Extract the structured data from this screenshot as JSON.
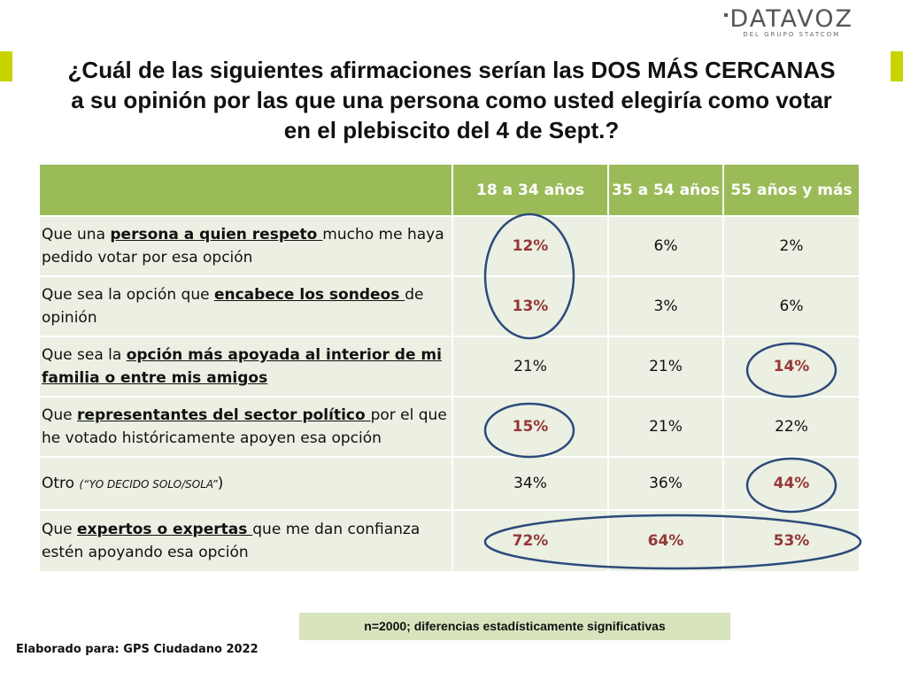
{
  "brand": {
    "logo_name": "DATAVOZ",
    "logo_subtitle": "DEL GRUPO STATCOM",
    "accent_color": "#c8d400",
    "header_green": "#9bbb59",
    "cell_green": "#ebf0e3",
    "highlight_red": "#953735",
    "circle_blue": "#2e4a7a"
  },
  "title": {
    "line1": "¿Cuál de las siguientes afirmaciones serían las DOS MÁS CERCANAS",
    "line2": "a su opinión por las que una persona como usted elegiría como votar",
    "line3": "en el plebiscito del 4 de Sept.?"
  },
  "table": {
    "columns": [
      "",
      "18 a 34 años",
      "35 a 54 años",
      "55 años y más"
    ],
    "rows": [
      {
        "pre": "Que una ",
        "emphasis": "persona a quien respeto ",
        "post": "mucho me haya pedido votar por esa opción",
        "note": "",
        "values": [
          "12%",
          "6%",
          "2%"
        ]
      },
      {
        "pre": "Que sea la opción que ",
        "emphasis": "encabece los sondeos ",
        "post": "de opinión",
        "note": "",
        "values": [
          "13%",
          "3%",
          "6%"
        ]
      },
      {
        "pre": "Que sea la ",
        "emphasis": "opción más apoyada al interior de mi familia o entre mis amigos",
        "post": "",
        "note": "",
        "values": [
          "21%",
          "21%",
          "14%"
        ]
      },
      {
        "pre": "Que ",
        "emphasis": "representantes del sector político ",
        "post": "por el que he votado históricamente apoyen esa opción",
        "note": "",
        "values": [
          "15%",
          "21%",
          "22%"
        ]
      },
      {
        "pre": "Otro ",
        "emphasis": "",
        "post": ")",
        "note": "(“YO DECIDO SOLO/SOLA”",
        "values": [
          "34%",
          "36%",
          "44%"
        ]
      },
      {
        "pre": "Que ",
        "emphasis": "expertos o expertas ",
        "post": "que me dan confianza estén apoyando esa opción",
        "note": "",
        "values": [
          "72%",
          "64%",
          "53%"
        ]
      }
    ]
  },
  "footnote": "n=2000; diferencias estadísticamente significativas",
  "credits": "Elaborado para:  GPS Ciudadano 2022"
}
